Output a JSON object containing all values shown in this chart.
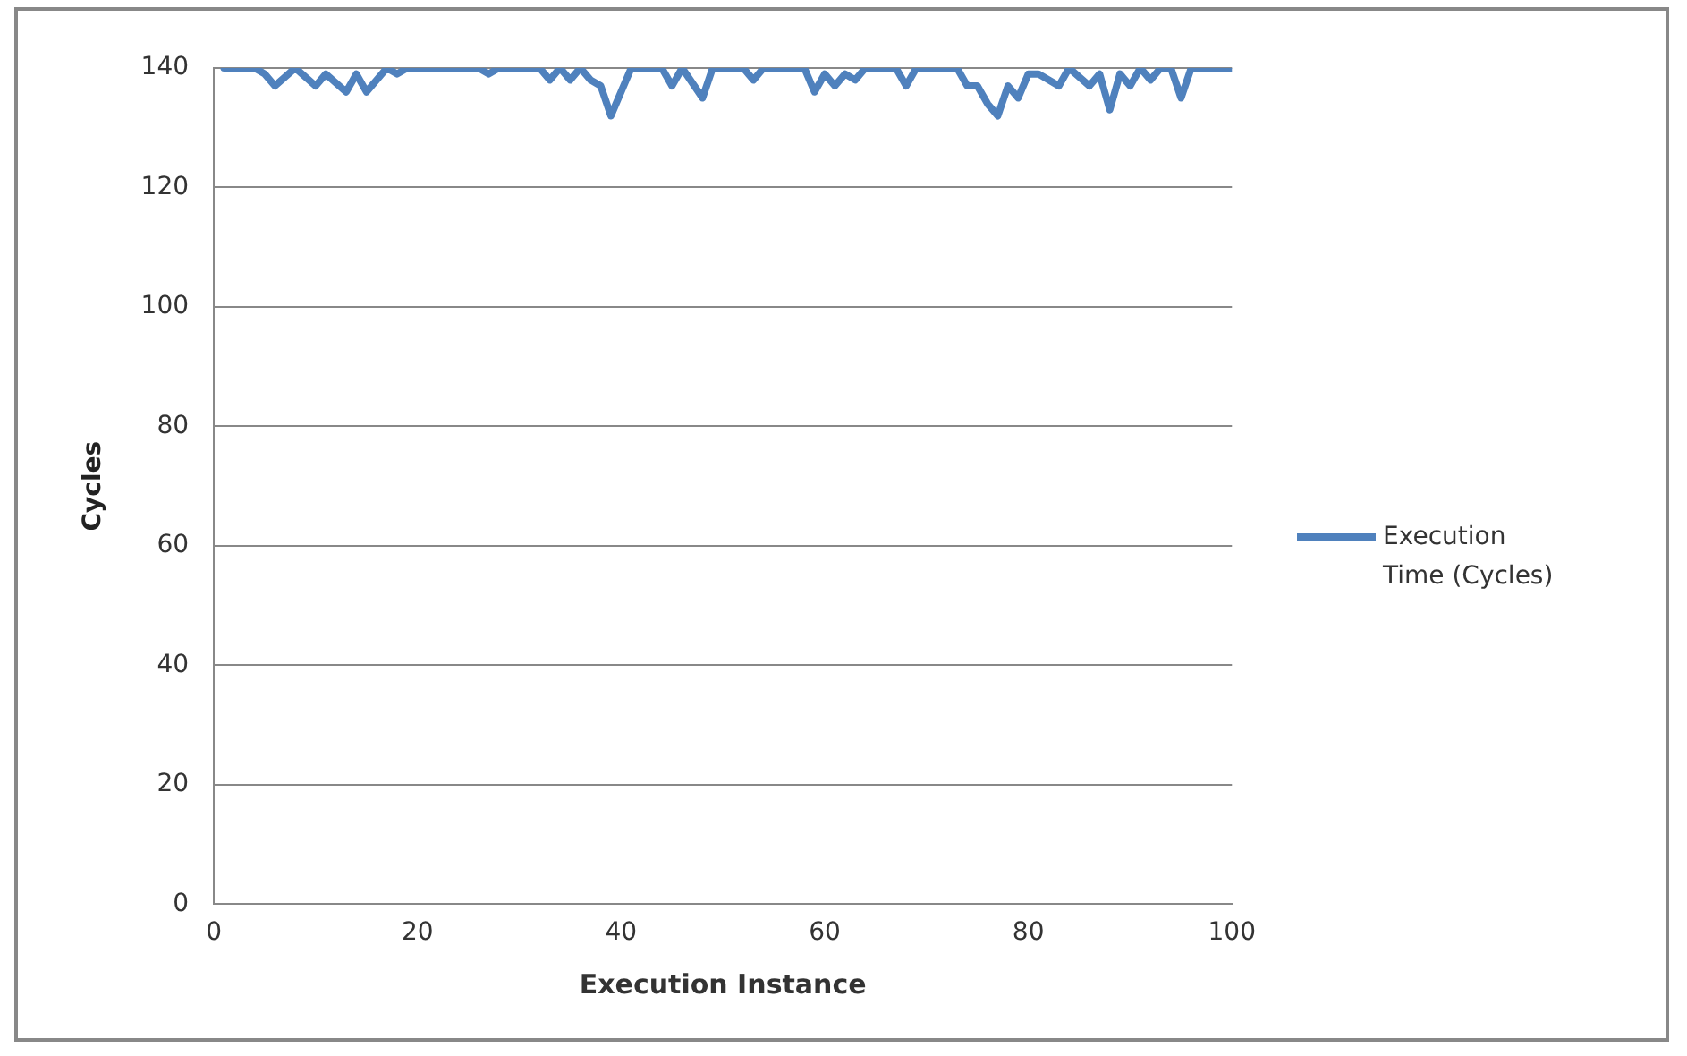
{
  "chart_data": {
    "type": "line",
    "xlabel": "Execution Instance",
    "ylabel": "Cycles",
    "xlim": [
      0,
      100
    ],
    "xticks": [
      0,
      20,
      40,
      60,
      80,
      100
    ],
    "ylim": [
      0,
      140
    ],
    "yticks": [
      0,
      20,
      40,
      60,
      80,
      100,
      120,
      140
    ],
    "grid": "y",
    "legend": "right",
    "marker": "none",
    "series": [
      {
        "name": "Execution Time (Cycles)",
        "color": "#4f81bd",
        "x": [
          1,
          4,
          5,
          6,
          8,
          10,
          11,
          13,
          14,
          15,
          17,
          18,
          19,
          26,
          27,
          28,
          32,
          33,
          34,
          35,
          36,
          37,
          38,
          39,
          41,
          44,
          45,
          46,
          48,
          49,
          52,
          53,
          54,
          58,
          59,
          60,
          61,
          62,
          63,
          64,
          67,
          68,
          69,
          73,
          74,
          75,
          76,
          77,
          78,
          79,
          80,
          81,
          83,
          84,
          86,
          87,
          88,
          89,
          90,
          91,
          92,
          93,
          94,
          95,
          96,
          97,
          100
        ],
        "values": [
          140,
          140,
          139,
          137,
          140,
          137,
          139,
          136,
          139,
          136,
          140,
          139,
          140,
          140,
          139,
          140,
          140,
          138,
          140,
          138,
          140,
          138,
          137,
          132,
          140,
          140,
          137,
          140,
          135,
          140,
          140,
          138,
          140,
          140,
          136,
          139,
          137,
          139,
          138,
          140,
          140,
          137,
          140,
          140,
          137,
          137,
          134,
          132,
          137,
          135,
          139,
          139,
          137,
          140,
          137,
          139,
          133,
          139,
          137,
          140,
          138,
          140,
          140,
          135,
          140,
          140,
          140
        ]
      }
    ]
  }
}
